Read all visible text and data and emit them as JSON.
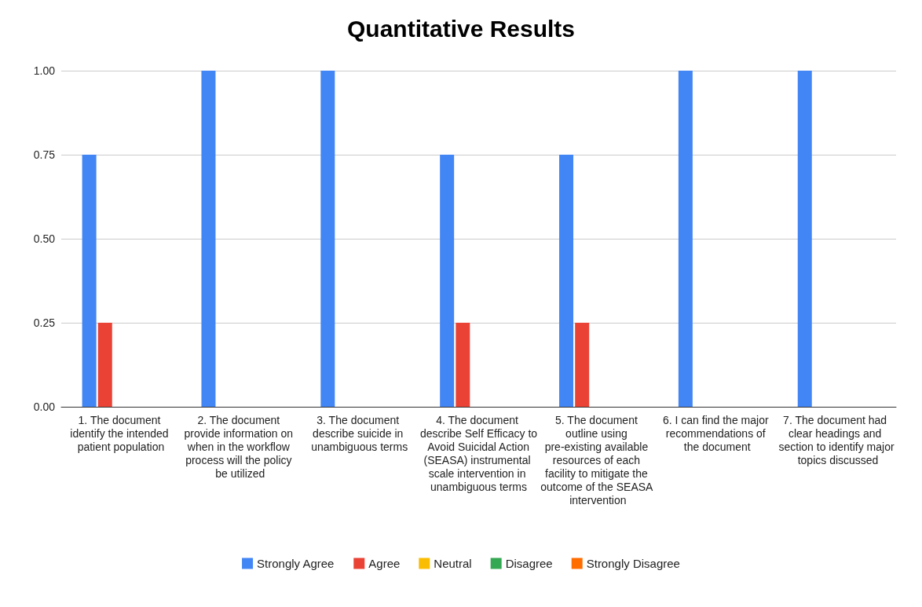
{
  "chart_data": {
    "type": "bar",
    "title": "Quantitative Results",
    "categories": [
      "1. The document identify the intended patient population",
      "2. The document provide information on when in the workflow process will the policy be utilized",
      "3. The document describe suicide in unambiguous terms",
      "4. The document describe Self Efficacy to Avoid Suicidal Action (SEASA) instrumental scale intervention in unambiguous terms",
      "5. The document outline using pre-existing available resources of each facility to mitigate the outcome of the SEASA intervention",
      "6. I can find the major recommendations of the document",
      "7. The document had clear headings and section to identify major topics discussed"
    ],
    "series": [
      {
        "name": "Strongly Agree",
        "color": "#4285f4",
        "values": [
          0.75,
          1,
          1,
          0.75,
          0.75,
          1,
          1
        ]
      },
      {
        "name": "Agree",
        "color": "#ea4335",
        "values": [
          0.25,
          0,
          0,
          0.25,
          0.25,
          0,
          0
        ]
      },
      {
        "name": "Neutral",
        "color": "#fbbc04",
        "values": [
          0,
          0,
          0,
          0,
          0,
          0,
          0
        ]
      },
      {
        "name": "Disagree",
        "color": "#34a853",
        "values": [
          0,
          0,
          0,
          0,
          0,
          0,
          0
        ]
      },
      {
        "name": "Strongly Disagree",
        "color": "#ff6d01",
        "values": [
          0,
          0,
          0,
          0,
          0,
          0,
          0
        ]
      }
    ],
    "ylim": [
      0,
      1
    ],
    "yticks": [
      {
        "value": 0,
        "label": "0.00"
      },
      {
        "value": 0.25,
        "label": "0.25"
      },
      {
        "value": 0.5,
        "label": "0.50"
      },
      {
        "value": 0.75,
        "label": "0.75"
      },
      {
        "value": 1,
        "label": "1.00"
      }
    ],
    "grid": "y",
    "legend": "bottom"
  }
}
